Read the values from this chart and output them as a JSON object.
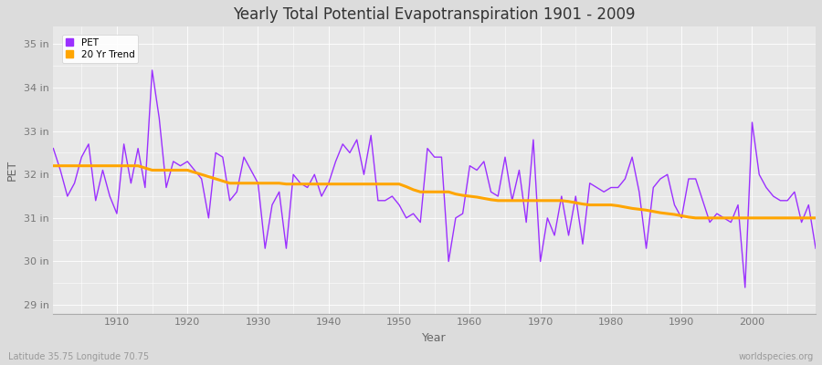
{
  "title": "Yearly Total Potential Evapotranspiration 1901 - 2009",
  "xlabel": "Year",
  "ylabel": "PET",
  "subtitle_left": "Latitude 35.75 Longitude 70.75",
  "subtitle_right": "worldspecies.org",
  "pet_color": "#9B30FF",
  "trend_color": "#FFA500",
  "bg_color": "#DCDCDC",
  "plot_bg_color": "#E8E8E8",
  "ylim": [
    28.8,
    35.4
  ],
  "yticks": [
    29,
    30,
    31,
    32,
    33,
    34,
    35
  ],
  "ytick_labels": [
    "29 in",
    "30 in",
    "31 in",
    "32 in",
    "33 in",
    "34 in",
    "35 in"
  ],
  "years": [
    1901,
    1902,
    1903,
    1904,
    1905,
    1906,
    1907,
    1908,
    1909,
    1910,
    1911,
    1912,
    1913,
    1914,
    1915,
    1916,
    1917,
    1918,
    1919,
    1920,
    1921,
    1922,
    1923,
    1924,
    1925,
    1926,
    1927,
    1928,
    1929,
    1930,
    1931,
    1932,
    1933,
    1934,
    1935,
    1936,
    1937,
    1938,
    1939,
    1940,
    1941,
    1942,
    1943,
    1944,
    1945,
    1946,
    1947,
    1948,
    1949,
    1950,
    1951,
    1952,
    1953,
    1954,
    1955,
    1956,
    1957,
    1958,
    1959,
    1960,
    1961,
    1962,
    1963,
    1964,
    1965,
    1966,
    1967,
    1968,
    1969,
    1970,
    1971,
    1972,
    1973,
    1974,
    1975,
    1976,
    1977,
    1978,
    1979,
    1980,
    1981,
    1982,
    1983,
    1984,
    1985,
    1986,
    1987,
    1988,
    1989,
    1990,
    1991,
    1992,
    1993,
    1994,
    1995,
    1996,
    1997,
    1998,
    1999,
    2000,
    2001,
    2002,
    2003,
    2004,
    2005,
    2006,
    2007,
    2008,
    2009
  ],
  "pet_values": [
    32.6,
    32.1,
    31.5,
    31.8,
    32.4,
    32.7,
    31.4,
    32.1,
    31.5,
    31.1,
    32.7,
    31.8,
    32.6,
    31.7,
    34.4,
    33.3,
    31.7,
    32.3,
    32.2,
    32.3,
    32.1,
    31.9,
    31.0,
    32.5,
    32.4,
    31.4,
    31.6,
    32.4,
    32.1,
    31.8,
    30.3,
    31.3,
    31.6,
    30.3,
    32.0,
    31.8,
    31.7,
    32.0,
    31.5,
    31.8,
    32.3,
    32.7,
    32.5,
    32.8,
    32.0,
    32.9,
    31.4,
    31.4,
    31.5,
    31.3,
    31.0,
    31.1,
    30.9,
    32.6,
    32.4,
    32.4,
    30.0,
    31.0,
    31.1,
    32.2,
    32.1,
    32.3,
    31.6,
    31.5,
    32.4,
    31.4,
    32.1,
    30.9,
    32.8,
    30.0,
    31.0,
    30.6,
    31.5,
    30.6,
    31.5,
    30.4,
    31.8,
    31.7,
    31.6,
    31.7,
    31.7,
    31.9,
    32.4,
    31.6,
    30.3,
    31.7,
    31.9,
    32.0,
    31.3,
    31.0,
    31.9,
    31.9,
    31.4,
    30.9,
    31.1,
    31.0,
    30.9,
    31.3,
    29.4,
    33.2,
    32.0,
    31.7,
    31.5,
    31.4,
    31.4,
    31.6,
    30.9,
    31.3,
    30.3
  ],
  "trend_years": [
    1901,
    1902,
    1903,
    1904,
    1905,
    1906,
    1907,
    1908,
    1909,
    1910,
    1911,
    1912,
    1913,
    1914,
    1915,
    1916,
    1917,
    1918,
    1919,
    1920,
    1921,
    1922,
    1923,
    1924,
    1925,
    1926,
    1927,
    1928,
    1929,
    1930,
    1931,
    1932,
    1933,
    1934,
    1935,
    1936,
    1937,
    1938,
    1939,
    1940,
    1941,
    1942,
    1943,
    1944,
    1945,
    1946,
    1947,
    1948,
    1949,
    1950,
    1951,
    1952,
    1953,
    1954,
    1955,
    1956,
    1957,
    1958,
    1959,
    1960,
    1961,
    1962,
    1963,
    1964,
    1965,
    1966,
    1967,
    1968,
    1969,
    1970,
    1971,
    1972,
    1973,
    1974,
    1975,
    1976,
    1977,
    1978,
    1979,
    1980,
    1981,
    1982,
    1983,
    1984,
    1985,
    1986,
    1987,
    1988,
    1989,
    1990,
    1991,
    1992,
    1993,
    1994,
    1995,
    1996,
    1997,
    1998,
    1999,
    2000,
    2001,
    2002,
    2003,
    2004,
    2005,
    2006,
    2007,
    2008,
    2009
  ],
  "trend_values": [
    32.2,
    32.2,
    32.2,
    32.2,
    32.2,
    32.2,
    32.2,
    32.2,
    32.2,
    32.2,
    32.2,
    32.2,
    32.2,
    32.15,
    32.1,
    32.1,
    32.1,
    32.1,
    32.1,
    32.1,
    32.05,
    32.0,
    31.95,
    31.9,
    31.85,
    31.8,
    31.8,
    31.8,
    31.8,
    31.8,
    31.8,
    31.8,
    31.8,
    31.78,
    31.78,
    31.78,
    31.78,
    31.78,
    31.78,
    31.78,
    31.78,
    31.78,
    31.78,
    31.78,
    31.78,
    31.78,
    31.78,
    31.78,
    31.78,
    31.78,
    31.72,
    31.65,
    31.6,
    31.6,
    31.6,
    31.6,
    31.6,
    31.55,
    31.52,
    31.5,
    31.48,
    31.45,
    31.42,
    31.4,
    31.4,
    31.4,
    31.4,
    31.4,
    31.4,
    31.4,
    31.4,
    31.4,
    31.4,
    31.38,
    31.35,
    31.32,
    31.3,
    31.3,
    31.3,
    31.3,
    31.28,
    31.25,
    31.22,
    31.2,
    31.18,
    31.15,
    31.12,
    31.1,
    31.08,
    31.05,
    31.02,
    31.0,
    31.0,
    31.0,
    31.0,
    31.0,
    31.0,
    31.0,
    31.0,
    31.0,
    31.0,
    31.0,
    31.0,
    31.0,
    31.0,
    31.0,
    31.0,
    31.0,
    31.0
  ]
}
